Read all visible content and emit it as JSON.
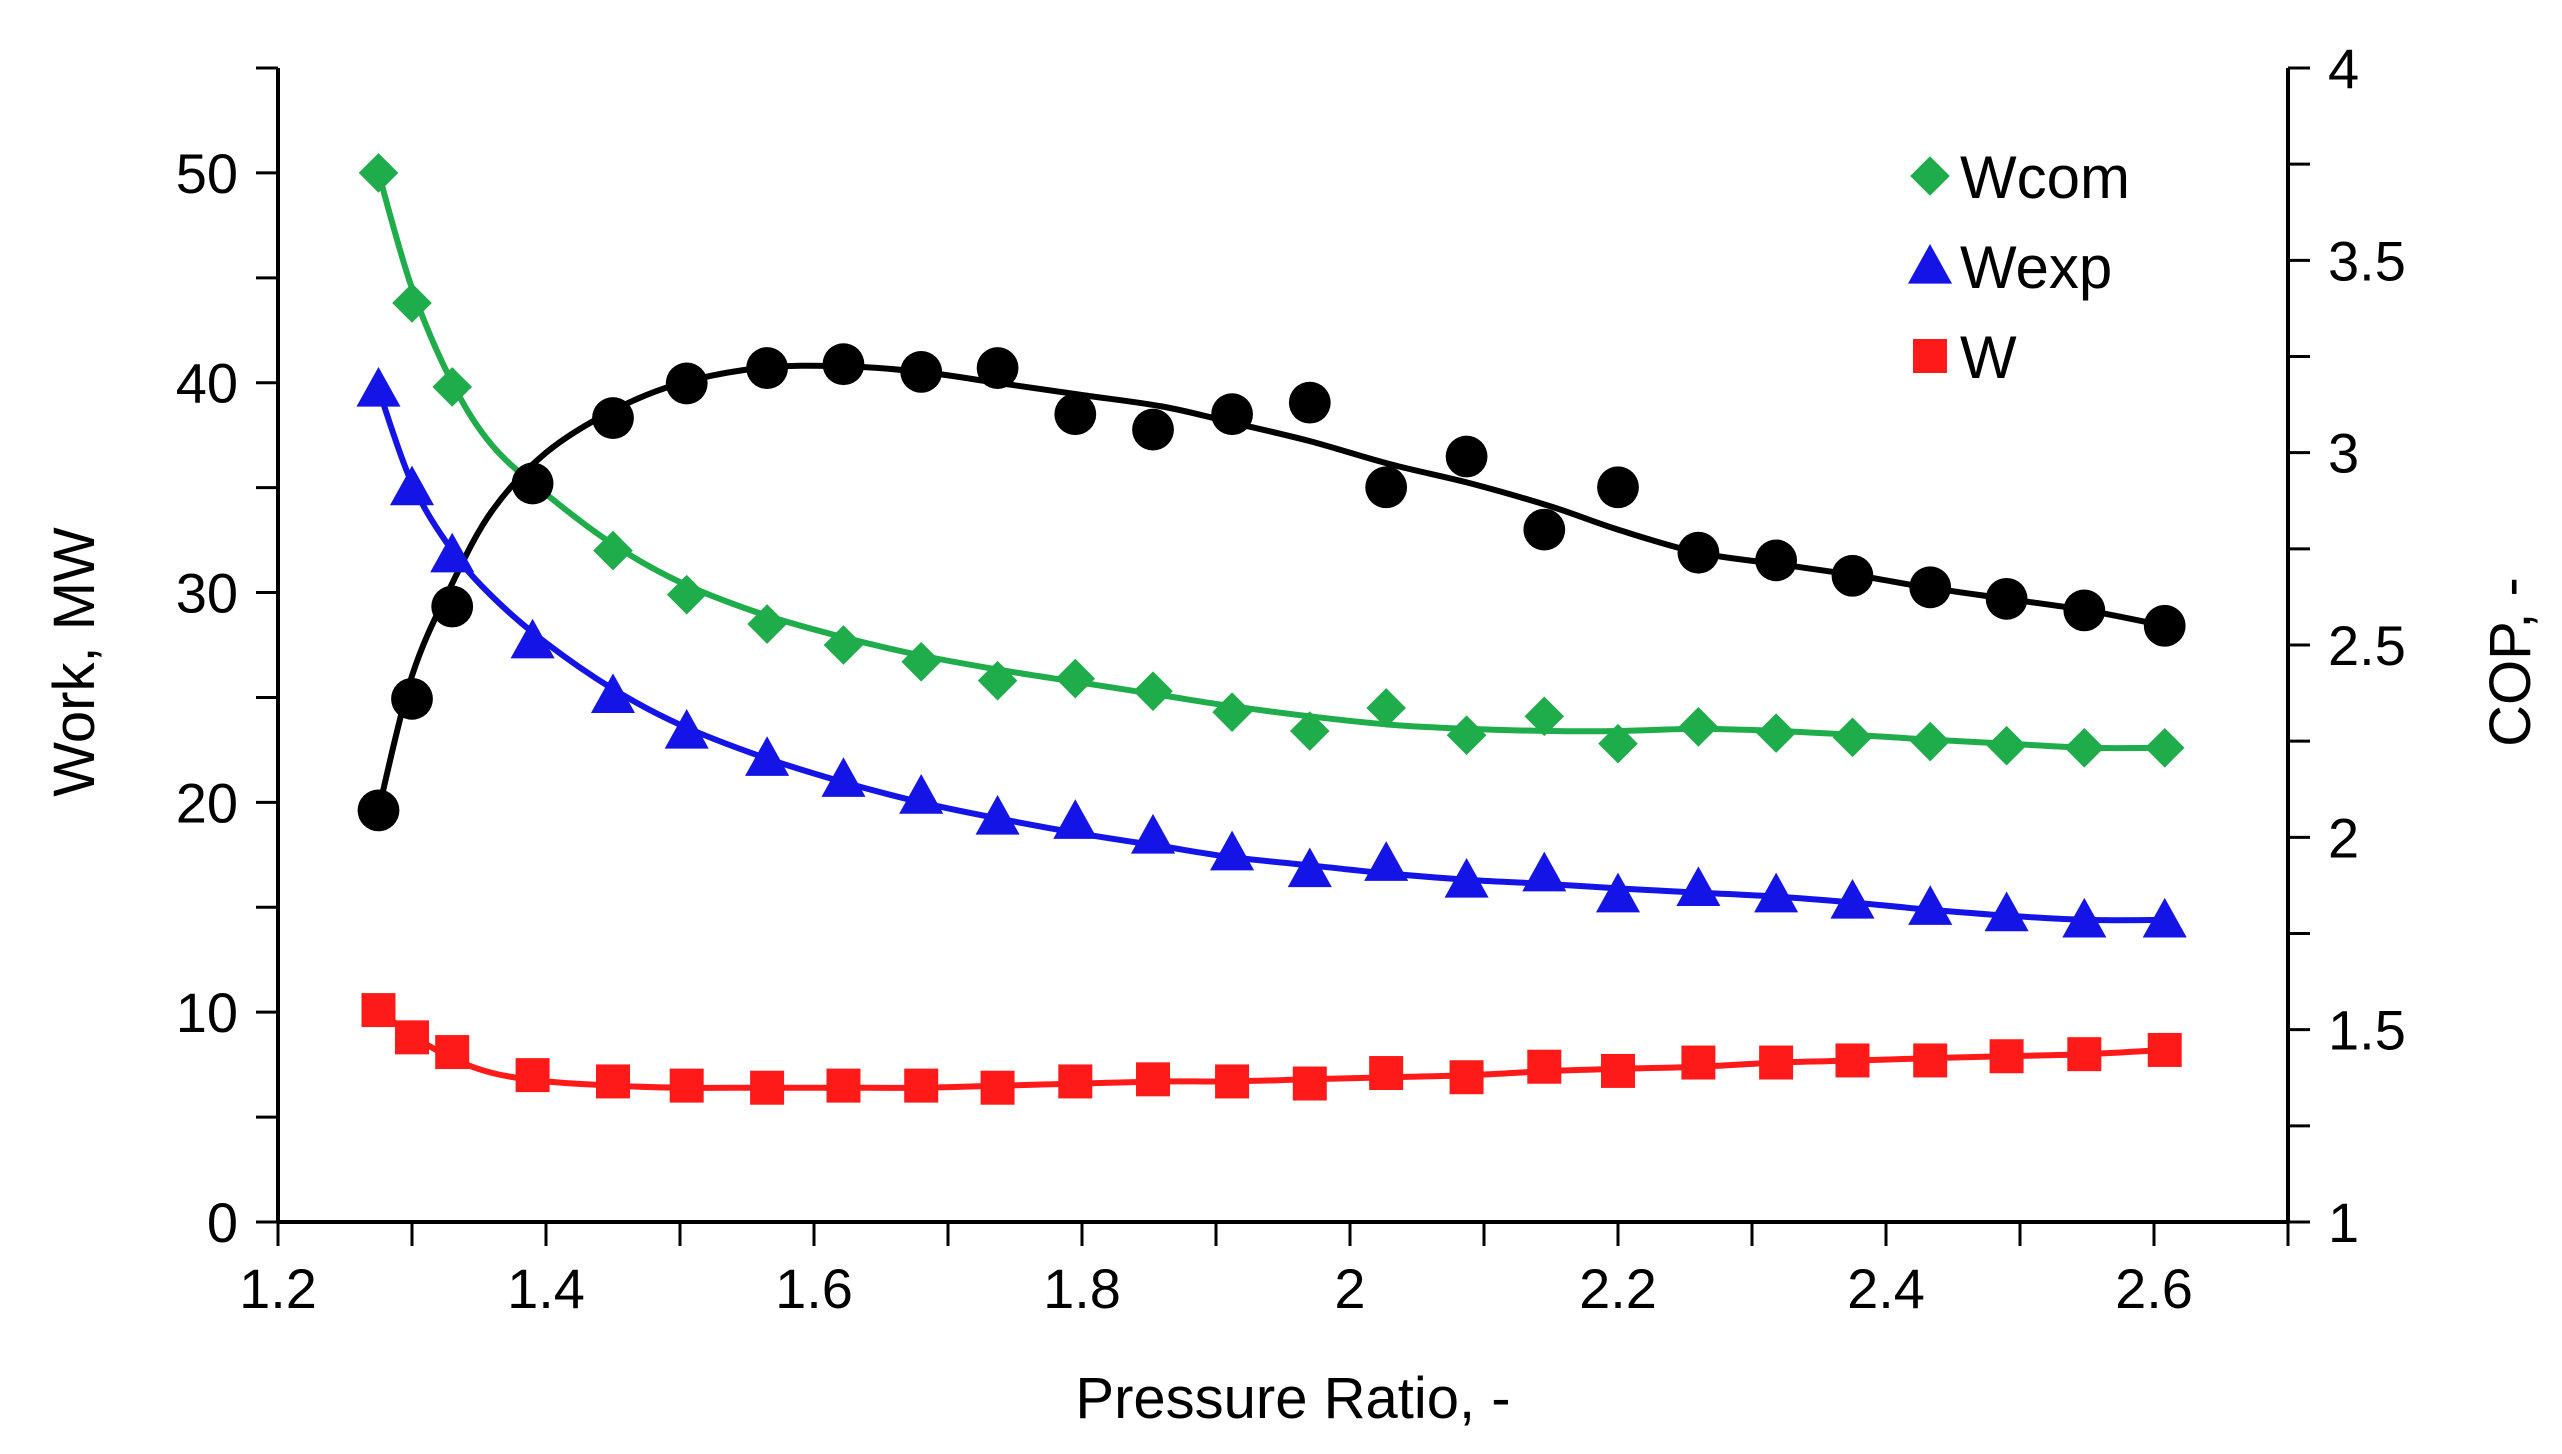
{
  "chart_data": {
    "type": "scatter",
    "title": "",
    "xlabel": "Pressure Ratio, -",
    "ylabel": "Work, MW",
    "y2label": "COP, -",
    "xlim": [
      1.2,
      2.7
    ],
    "ylim": [
      0,
      55
    ],
    "y2lim": [
      1,
      4
    ],
    "x_ticks": [
      1.2,
      1.4,
      1.6,
      1.8,
      2,
      2.2,
      2.4,
      2.6
    ],
    "x_tick_labels": [
      "1.2",
      "1.4",
      "1.6",
      "1.8",
      "2",
      "2.2",
      "2.4",
      "2.6"
    ],
    "y_ticks": [
      0,
      10,
      20,
      30,
      40,
      50
    ],
    "y_tick_labels": [
      "0",
      "10",
      "20",
      "30",
      "40",
      "50"
    ],
    "y2_ticks": [
      1,
      1.5,
      2,
      2.5,
      3,
      3.5,
      4
    ],
    "y2_tick_labels": [
      "1",
      "1.5",
      "2",
      "2.5",
      "3",
      "3.5",
      "4"
    ],
    "legend_position": "top-right",
    "x": [
      1.275,
      1.3,
      1.33,
      1.39,
      1.45,
      1.505,
      1.565,
      1.622,
      1.68,
      1.737,
      1.795,
      1.853,
      1.912,
      1.97,
      2.027,
      2.087,
      2.145,
      2.2,
      2.26,
      2.318,
      2.375,
      2.433,
      2.49,
      2.548,
      2.608
    ],
    "series": [
      {
        "name": "Wcom",
        "axis": "left",
        "marker": "diamond",
        "color": "#1fad4b",
        "values": [
          50.0,
          43.8,
          39.8,
          35.2,
          32.0,
          29.9,
          28.5,
          27.5,
          26.7,
          25.8,
          25.9,
          25.3,
          24.3,
          23.4,
          24.5,
          23.2,
          24.1,
          22.8,
          23.6,
          23.3,
          23.1,
          22.9,
          22.7,
          22.6,
          22.6
        ]
      },
      {
        "name": "Wexp",
        "axis": "left",
        "marker": "triangle",
        "color": "#1414e6",
        "values": [
          39.7,
          35.0,
          31.8,
          27.7,
          25.1,
          23.4,
          22.1,
          21.1,
          20.3,
          19.3,
          19.1,
          18.4,
          17.6,
          16.8,
          17.1,
          16.3,
          16.6,
          15.6,
          15.9,
          15.6,
          15.3,
          15.0,
          14.7,
          14.4,
          14.4
        ]
      },
      {
        "name": "W",
        "axis": "left",
        "marker": "square",
        "color": "#ff1a1a",
        "values": [
          10.1,
          8.8,
          8.1,
          7.0,
          6.7,
          6.5,
          6.4,
          6.5,
          6.5,
          6.4,
          6.7,
          6.8,
          6.7,
          6.6,
          7.1,
          6.9,
          7.4,
          7.2,
          7.6,
          7.6,
          7.7,
          7.7,
          7.9,
          8.0,
          8.2
        ]
      },
      {
        "name": "COP",
        "axis": "right",
        "marker": "circle",
        "color": "#000000",
        "show_in_legend": false,
        "values": [
          2.07,
          2.36,
          2.6,
          2.92,
          3.09,
          3.18,
          3.22,
          3.23,
          3.21,
          3.22,
          3.1,
          3.06,
          3.1,
          3.13,
          2.91,
          2.99,
          2.8,
          2.91,
          2.74,
          2.72,
          2.68,
          2.65,
          2.62,
          2.59,
          2.55
        ]
      }
    ],
    "trend_lines": [
      {
        "series": "Wcom",
        "x": [
          1.275,
          1.3,
          1.33,
          1.36,
          1.4,
          1.45,
          1.5,
          1.56,
          1.62,
          1.68,
          1.74,
          1.8,
          1.86,
          1.91,
          1.97,
          2.03,
          2.09,
          2.15,
          2.2,
          2.26,
          2.32,
          2.38,
          2.43,
          2.49,
          2.55,
          2.608
        ],
        "y": [
          50.0,
          44.5,
          40.0,
          37.0,
          34.7,
          32.3,
          30.5,
          29.0,
          27.9,
          27.0,
          26.3,
          25.7,
          25.1,
          24.6,
          24.1,
          23.7,
          23.5,
          23.4,
          23.4,
          23.5,
          23.4,
          23.2,
          23.0,
          22.8,
          22.6,
          22.6
        ]
      },
      {
        "series": "Wexp",
        "x": [
          1.275,
          1.3,
          1.33,
          1.36,
          1.4,
          1.45,
          1.5,
          1.56,
          1.62,
          1.68,
          1.74,
          1.8,
          1.86,
          1.91,
          1.97,
          2.03,
          2.09,
          2.15,
          2.2,
          2.26,
          2.32,
          2.38,
          2.43,
          2.49,
          2.55,
          2.608
        ],
        "y": [
          39.7,
          35.2,
          32.0,
          29.8,
          27.6,
          25.4,
          23.7,
          22.2,
          21.0,
          20.0,
          19.2,
          18.5,
          17.9,
          17.4,
          17.0,
          16.6,
          16.3,
          16.1,
          15.9,
          15.7,
          15.5,
          15.2,
          14.9,
          14.6,
          14.4,
          14.4
        ]
      },
      {
        "series": "W",
        "x": [
          1.275,
          1.3,
          1.33,
          1.36,
          1.4,
          1.45,
          1.5,
          1.56,
          1.62,
          1.68,
          1.74,
          1.8,
          1.86,
          1.91,
          1.97,
          2.03,
          2.09,
          2.15,
          2.2,
          2.26,
          2.32,
          2.38,
          2.43,
          2.49,
          2.55,
          2.608
        ],
        "y": [
          10.1,
          8.9,
          7.8,
          7.1,
          6.7,
          6.5,
          6.4,
          6.4,
          6.4,
          6.4,
          6.5,
          6.6,
          6.7,
          6.7,
          6.8,
          6.9,
          7.0,
          7.2,
          7.3,
          7.4,
          7.6,
          7.7,
          7.8,
          7.9,
          8.0,
          8.2
        ]
      },
      {
        "series": "COP",
        "x": [
          1.275,
          1.3,
          1.33,
          1.36,
          1.4,
          1.45,
          1.5,
          1.56,
          1.62,
          1.68,
          1.74,
          1.8,
          1.86,
          1.91,
          1.97,
          2.03,
          2.09,
          2.15,
          2.2,
          2.26,
          2.32,
          2.38,
          2.43,
          2.49,
          2.55,
          2.608
        ],
        "y": [
          2.07,
          2.42,
          2.66,
          2.85,
          3.0,
          3.11,
          3.18,
          3.22,
          3.225,
          3.21,
          3.18,
          3.15,
          3.12,
          3.08,
          3.03,
          2.97,
          2.92,
          2.86,
          2.8,
          2.74,
          2.71,
          2.68,
          2.65,
          2.62,
          2.59,
          2.55
        ]
      }
    ]
  }
}
